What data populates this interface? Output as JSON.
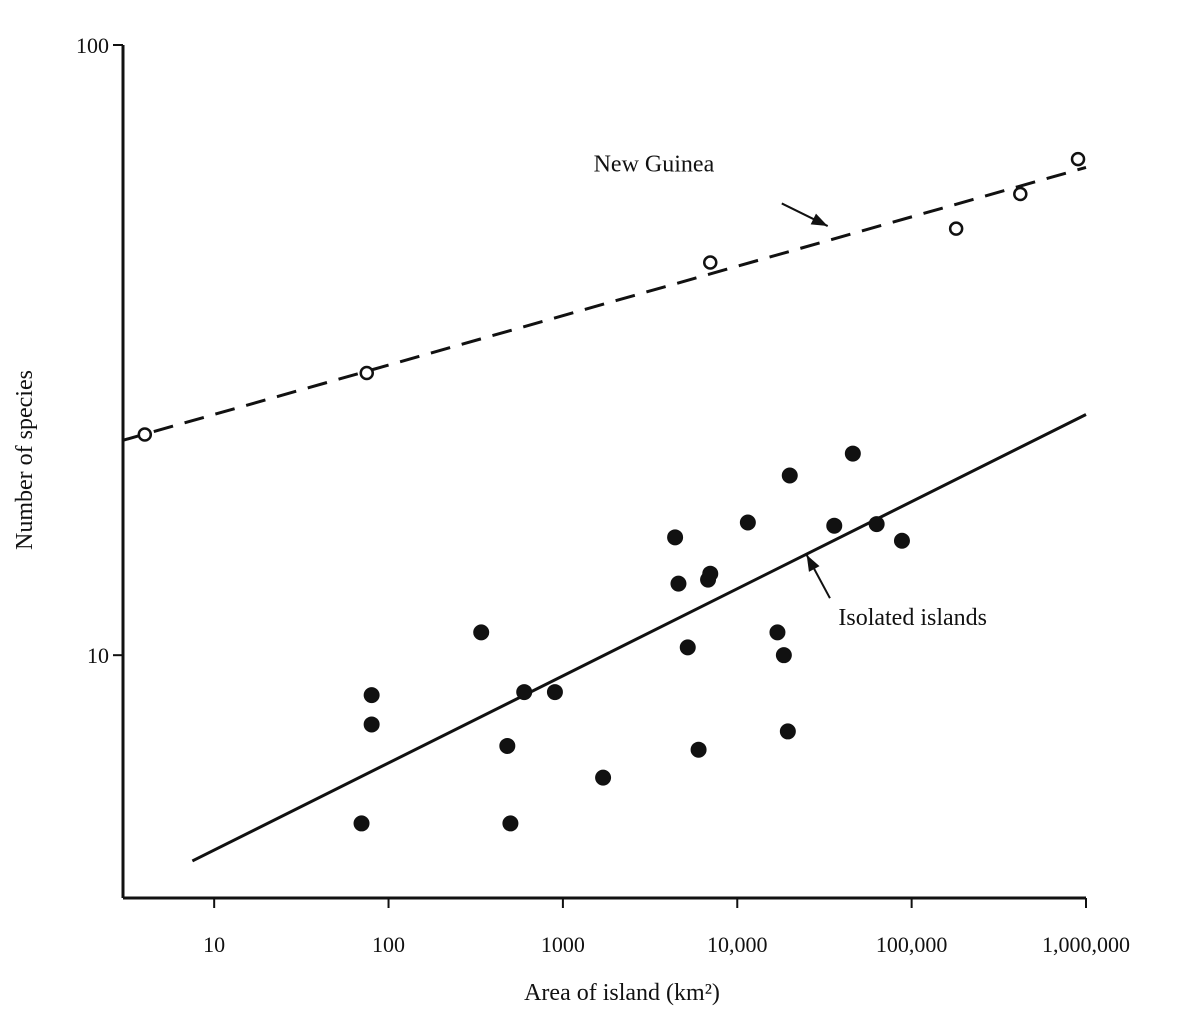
{
  "chart_data": {
    "type": "scatter",
    "xlabel": "Area of island (km²)",
    "ylabel": "Number of species",
    "x_scale": "log",
    "y_scale": "log",
    "xlim": [
      3,
      1000000
    ],
    "ylim": [
      4,
      100
    ],
    "x_ticks": [
      10,
      100,
      1000,
      10000,
      100000,
      1000000
    ],
    "x_tick_labels": [
      "10",
      "100",
      "1000",
      "10,000",
      "100,000",
      "1,000,000"
    ],
    "y_ticks": [
      10,
      100
    ],
    "y_tick_labels": [
      "10",
      "100"
    ],
    "grid": false,
    "series": [
      {
        "name": "New Guinea",
        "marker": "open-circle",
        "points": [
          {
            "x": 4,
            "y": 23
          },
          {
            "x": 75,
            "y": 29
          },
          {
            "x": 7000,
            "y": 44
          },
          {
            "x": 180000,
            "y": 50
          },
          {
            "x": 420000,
            "y": 57
          },
          {
            "x": 900000,
            "y": 65
          }
        ],
        "fit": {
          "style": "dashed",
          "from": [
            3,
            22.5
          ],
          "to": [
            1000000,
            63
          ]
        }
      },
      {
        "name": "Isolated islands",
        "marker": "filled-circle",
        "points": [
          {
            "x": 70,
            "y": 5.3
          },
          {
            "x": 80,
            "y": 8.6
          },
          {
            "x": 80,
            "y": 7.7
          },
          {
            "x": 340,
            "y": 10.9
          },
          {
            "x": 480,
            "y": 7.1
          },
          {
            "x": 500,
            "y": 5.3
          },
          {
            "x": 600,
            "y": 8.7
          },
          {
            "x": 900,
            "y": 8.7
          },
          {
            "x": 1700,
            "y": 6.3
          },
          {
            "x": 4400,
            "y": 15.6
          },
          {
            "x": 4600,
            "y": 13.1
          },
          {
            "x": 5200,
            "y": 10.3
          },
          {
            "x": 6000,
            "y": 7.0
          },
          {
            "x": 6800,
            "y": 13.3
          },
          {
            "x": 7000,
            "y": 13.6
          },
          {
            "x": 11500,
            "y": 16.5
          },
          {
            "x": 17000,
            "y": 10.9
          },
          {
            "x": 18500,
            "y": 10.0
          },
          {
            "x": 19500,
            "y": 7.5
          },
          {
            "x": 20000,
            "y": 19.7
          },
          {
            "x": 36000,
            "y": 16.3
          },
          {
            "x": 46000,
            "y": 21.4
          },
          {
            "x": 63000,
            "y": 16.4
          },
          {
            "x": 88000,
            "y": 15.4
          }
        ],
        "fit": {
          "style": "solid",
          "from": [
            7.5,
            4.6
          ],
          "to": [
            1000000,
            24.8
          ]
        }
      }
    ],
    "annotations": [
      {
        "text": "New Guinea",
        "series": 0,
        "label_at": [
          1500,
          62
        ],
        "arrow_from": [
          18000,
          55
        ],
        "arrow_to": [
          33000,
          50.5
        ]
      },
      {
        "text": "Isolated islands",
        "series": 1,
        "label_at": [
          38000,
          11.2
        ],
        "arrow_from": [
          34000,
          12.4
        ],
        "arrow_to": [
          25000,
          14.6
        ]
      }
    ]
  }
}
